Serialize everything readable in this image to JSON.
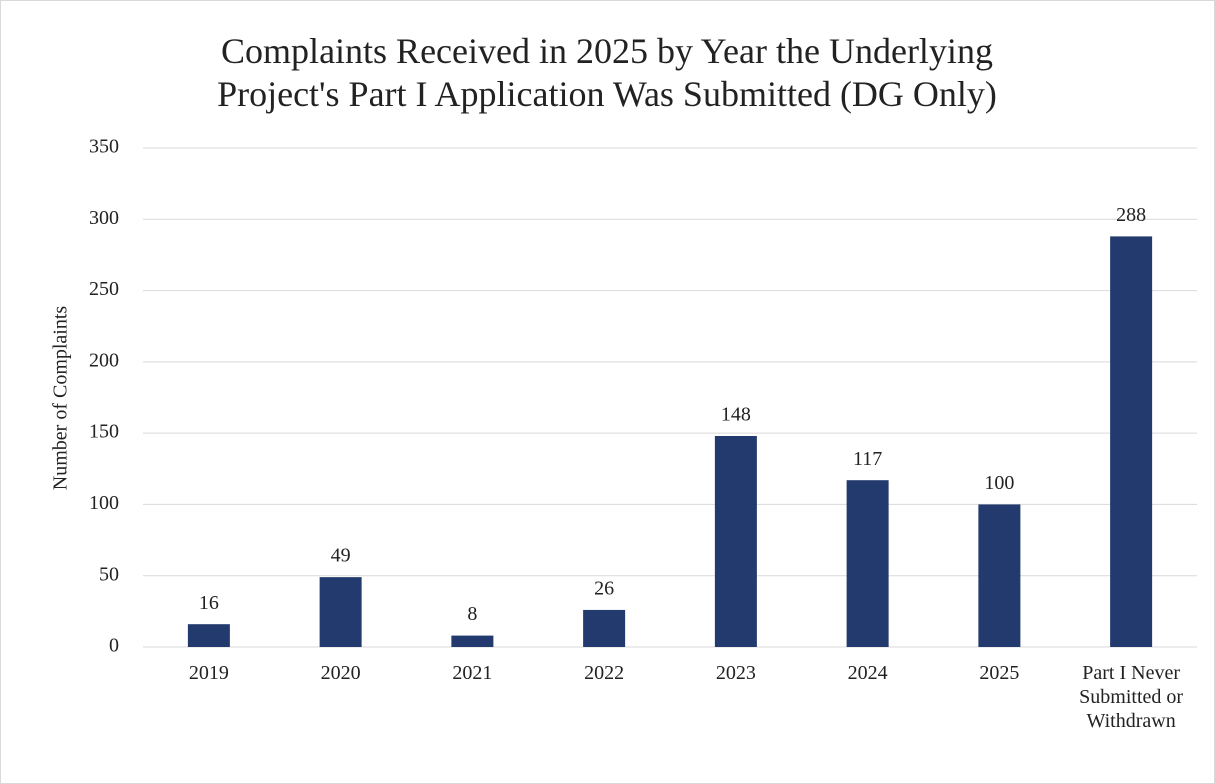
{
  "chart_data": {
    "type": "bar",
    "title": "Complaints Received in 2025 by Year the Underlying Project's Part I Application Was Submitted (DG Only)",
    "y_label": "Number of Complaints",
    "categories": [
      "2019",
      "2020",
      "2021",
      "2022",
      "2023",
      "2024",
      "2025",
      "Part I Never Submitted or Withdrawn"
    ],
    "values": [
      16,
      49,
      8,
      26,
      148,
      117,
      100,
      288
    ],
    "color": "#233a6e",
    "ylim": [
      0,
      350
    ],
    "yticks": [
      0,
      50,
      100,
      150,
      200,
      250,
      300,
      350
    ],
    "grid": true
  }
}
